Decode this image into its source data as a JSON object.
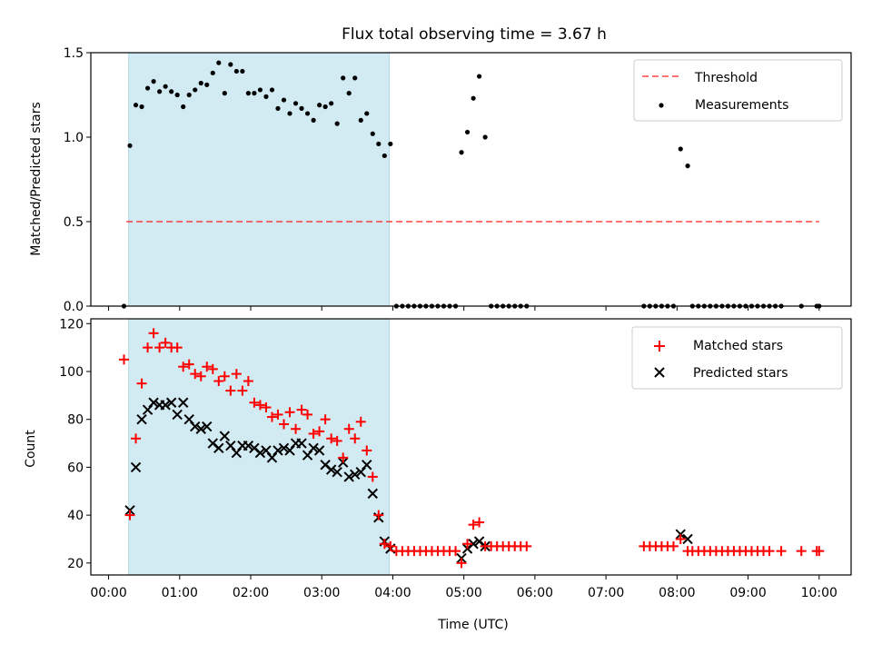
{
  "figure": {
    "title": "Flux total observing time = 3.67 h"
  },
  "chart_data": [
    {
      "type": "scatter",
      "title": "Flux total observing time = 3.67 h",
      "xlabel": "",
      "ylabel": "Matched/Predicted stars",
      "xlim": [
        "23:45",
        "10:27"
      ],
      "ylim": [
        0,
        1.5
      ],
      "yticks": [
        "0.0",
        "0.5",
        "1.0",
        "1.5"
      ],
      "shaded_region": {
        "start": "00:17",
        "end": "03:57",
        "color": "#add8e6"
      },
      "legend": {
        "position": "top-right",
        "entries": [
          "Threshold",
          "Measurements"
        ]
      },
      "threshold": {
        "name": "Threshold",
        "value": 0.5,
        "x_start": "00:15",
        "x_end": "10:00",
        "color": "#ff0000",
        "style": "dashed"
      },
      "measurements": {
        "name": "Measurements",
        "color": "#000000",
        "points": [
          [
            "00:13",
            0.0
          ],
          [
            "00:18",
            0.95
          ],
          [
            "00:23",
            1.19
          ],
          [
            "00:28",
            1.18
          ],
          [
            "00:33",
            1.29
          ],
          [
            "00:38",
            1.33
          ],
          [
            "00:43",
            1.27
          ],
          [
            "00:48",
            1.3
          ],
          [
            "00:53",
            1.27
          ],
          [
            "00:58",
            1.25
          ],
          [
            "01:03",
            1.18
          ],
          [
            "01:08",
            1.25
          ],
          [
            "01:13",
            1.28
          ],
          [
            "01:18",
            1.32
          ],
          [
            "01:23",
            1.31
          ],
          [
            "01:28",
            1.38
          ],
          [
            "01:33",
            1.44
          ],
          [
            "01:38",
            1.26
          ],
          [
            "01:43",
            1.43
          ],
          [
            "01:48",
            1.39
          ],
          [
            "01:53",
            1.39
          ],
          [
            "01:58",
            1.26
          ],
          [
            "02:03",
            1.26
          ],
          [
            "02:08",
            1.28
          ],
          [
            "02:13",
            1.24
          ],
          [
            "02:18",
            1.28
          ],
          [
            "02:23",
            1.17
          ],
          [
            "02:28",
            1.22
          ],
          [
            "02:33",
            1.14
          ],
          [
            "02:38",
            1.2
          ],
          [
            "02:43",
            1.17
          ],
          [
            "02:48",
            1.14
          ],
          [
            "02:53",
            1.1
          ],
          [
            "02:58",
            1.19
          ],
          [
            "03:03",
            1.18
          ],
          [
            "03:08",
            1.2
          ],
          [
            "03:13",
            1.08
          ],
          [
            "03:18",
            1.35
          ],
          [
            "03:23",
            1.26
          ],
          [
            "03:28",
            1.35
          ],
          [
            "03:33",
            1.1
          ],
          [
            "03:38",
            1.14
          ],
          [
            "03:43",
            1.02
          ],
          [
            "03:48",
            0.96
          ],
          [
            "03:53",
            0.89
          ],
          [
            "03:58",
            0.96
          ],
          [
            "04:03",
            0.0
          ],
          [
            "04:08",
            0.0
          ],
          [
            "04:13",
            0.0
          ],
          [
            "04:18",
            0.0
          ],
          [
            "04:23",
            0.0
          ],
          [
            "04:28",
            0.0
          ],
          [
            "04:33",
            0.0
          ],
          [
            "04:38",
            0.0
          ],
          [
            "04:43",
            0.0
          ],
          [
            "04:48",
            0.0
          ],
          [
            "04:53",
            0.0
          ],
          [
            "04:58",
            0.91
          ],
          [
            "05:03",
            1.03
          ],
          [
            "05:08",
            1.23
          ],
          [
            "05:13",
            1.36
          ],
          [
            "05:18",
            1.0
          ],
          [
            "05:23",
            0.0
          ],
          [
            "05:28",
            0.0
          ],
          [
            "05:33",
            0.0
          ],
          [
            "05:38",
            0.0
          ],
          [
            "05:43",
            0.0
          ],
          [
            "05:48",
            0.0
          ],
          [
            "05:53",
            0.0
          ],
          [
            "07:32",
            0.0
          ],
          [
            "07:37",
            0.0
          ],
          [
            "07:42",
            0.0
          ],
          [
            "07:47",
            0.0
          ],
          [
            "07:52",
            0.0
          ],
          [
            "07:57",
            0.0
          ],
          [
            "08:03",
            0.93
          ],
          [
            "08:09",
            0.83
          ],
          [
            "08:13",
            0.0
          ],
          [
            "08:18",
            0.0
          ],
          [
            "08:23",
            0.0
          ],
          [
            "08:28",
            0.0
          ],
          [
            "08:33",
            0.0
          ],
          [
            "08:38",
            0.0
          ],
          [
            "08:43",
            0.0
          ],
          [
            "08:48",
            0.0
          ],
          [
            "08:53",
            0.0
          ],
          [
            "08:58",
            0.0
          ],
          [
            "09:03",
            0.0
          ],
          [
            "09:08",
            0.0
          ],
          [
            "09:13",
            0.0
          ],
          [
            "09:18",
            0.0
          ],
          [
            "09:23",
            0.0
          ],
          [
            "09:28",
            0.0
          ],
          [
            "09:45",
            0.0
          ],
          [
            "09:58",
            0.0
          ],
          [
            "10:00",
            0.0
          ]
        ]
      }
    },
    {
      "type": "scatter",
      "title": "",
      "xlabel": "Time (UTC)",
      "ylabel": "Count",
      "xlim": [
        "23:45",
        "10:27"
      ],
      "ylim": [
        15,
        122
      ],
      "yticks": [
        "20",
        "40",
        "60",
        "80",
        "100",
        "120"
      ],
      "xticks": [
        "00:00",
        "01:00",
        "02:00",
        "03:00",
        "04:00",
        "05:00",
        "06:00",
        "07:00",
        "08:00",
        "09:00",
        "10:00"
      ],
      "shaded_region": {
        "start": "00:17",
        "end": "03:57",
        "color": "#add8e6"
      },
      "legend": {
        "position": "top-right",
        "entries": [
          "Matched stars",
          "Predicted stars"
        ]
      },
      "series": [
        {
          "name": "Matched stars",
          "marker": "+",
          "color": "#ff0000",
          "points": [
            [
              "00:13",
              105
            ],
            [
              "00:18",
              40
            ],
            [
              "00:23",
              72
            ],
            [
              "00:28",
              95
            ],
            [
              "00:33",
              110
            ],
            [
              "00:38",
              116
            ],
            [
              "00:43",
              110
            ],
            [
              "00:48",
              112
            ],
            [
              "00:53",
              110
            ],
            [
              "00:58",
              110
            ],
            [
              "01:03",
              102
            ],
            [
              "01:08",
              103
            ],
            [
              "01:13",
              99
            ],
            [
              "01:18",
              98
            ],
            [
              "01:23",
              102
            ],
            [
              "01:28",
              101
            ],
            [
              "01:33",
              96
            ],
            [
              "01:38",
              98
            ],
            [
              "01:43",
              92
            ],
            [
              "01:48",
              99
            ],
            [
              "01:53",
              92
            ],
            [
              "01:58",
              96
            ],
            [
              "02:03",
              87
            ],
            [
              "02:08",
              86
            ],
            [
              "02:13",
              85
            ],
            [
              "02:18",
              81
            ],
            [
              "02:23",
              82
            ],
            [
              "02:28",
              78
            ],
            [
              "02:33",
              83
            ],
            [
              "02:38",
              76
            ],
            [
              "02:43",
              84
            ],
            [
              "02:48",
              82
            ],
            [
              "02:53",
              74
            ],
            [
              "02:58",
              75
            ],
            [
              "03:03",
              80
            ],
            [
              "03:08",
              72
            ],
            [
              "03:13",
              71
            ],
            [
              "03:18",
              64
            ],
            [
              "03:23",
              76
            ],
            [
              "03:28",
              72
            ],
            [
              "03:33",
              79
            ],
            [
              "03:38",
              67
            ],
            [
              "03:43",
              56
            ],
            [
              "03:48",
              40
            ],
            [
              "03:53",
              28
            ],
            [
              "03:58",
              27
            ],
            [
              "04:03",
              25
            ],
            [
              "04:08",
              25
            ],
            [
              "04:13",
              25
            ],
            [
              "04:18",
              25
            ],
            [
              "04:23",
              25
            ],
            [
              "04:28",
              25
            ],
            [
              "04:33",
              25
            ],
            [
              "04:38",
              25
            ],
            [
              "04:43",
              25
            ],
            [
              "04:48",
              25
            ],
            [
              "04:53",
              25
            ],
            [
              "04:58",
              20
            ],
            [
              "05:03",
              28
            ],
            [
              "05:08",
              36
            ],
            [
              "05:13",
              37
            ],
            [
              "05:18",
              27
            ],
            [
              "05:23",
              27
            ],
            [
              "05:28",
              27
            ],
            [
              "05:33",
              27
            ],
            [
              "05:38",
              27
            ],
            [
              "05:43",
              27
            ],
            [
              "05:48",
              27
            ],
            [
              "05:53",
              27
            ],
            [
              "07:32",
              27
            ],
            [
              "07:37",
              27
            ],
            [
              "07:42",
              27
            ],
            [
              "07:47",
              27
            ],
            [
              "07:52",
              27
            ],
            [
              "07:57",
              27
            ],
            [
              "08:03",
              30
            ],
            [
              "08:09",
              25
            ],
            [
              "08:13",
              25
            ],
            [
              "08:18",
              25
            ],
            [
              "08:23",
              25
            ],
            [
              "08:28",
              25
            ],
            [
              "08:33",
              25
            ],
            [
              "08:38",
              25
            ],
            [
              "08:43",
              25
            ],
            [
              "08:48",
              25
            ],
            [
              "08:53",
              25
            ],
            [
              "08:58",
              25
            ],
            [
              "09:03",
              25
            ],
            [
              "09:08",
              25
            ],
            [
              "09:13",
              25
            ],
            [
              "09:18",
              25
            ],
            [
              "09:28",
              25
            ],
            [
              "09:45",
              25
            ],
            [
              "09:58",
              25
            ],
            [
              "10:00",
              25
            ]
          ]
        },
        {
          "name": "Predicted stars",
          "marker": "x",
          "color": "#000000",
          "points": [
            [
              "00:18",
              42
            ],
            [
              "00:23",
              60
            ],
            [
              "00:28",
              80
            ],
            [
              "00:33",
              84
            ],
            [
              "00:38",
              87
            ],
            [
              "00:43",
              86
            ],
            [
              "00:48",
              86
            ],
            [
              "00:53",
              87
            ],
            [
              "00:58",
              82
            ],
            [
              "01:03",
              87
            ],
            [
              "01:08",
              80
            ],
            [
              "01:13",
              77
            ],
            [
              "01:18",
              76
            ],
            [
              "01:23",
              77
            ],
            [
              "01:28",
              70
            ],
            [
              "01:33",
              68
            ],
            [
              "01:38",
              73
            ],
            [
              "01:43",
              69
            ],
            [
              "01:48",
              66
            ],
            [
              "01:53",
              69
            ],
            [
              "01:58",
              69
            ],
            [
              "02:03",
              68
            ],
            [
              "02:08",
              66
            ],
            [
              "02:13",
              67
            ],
            [
              "02:18",
              64
            ],
            [
              "02:23",
              67
            ],
            [
              "02:28",
              68
            ],
            [
              "02:33",
              67
            ],
            [
              "02:38",
              70
            ],
            [
              "02:43",
              70
            ],
            [
              "02:48",
              65
            ],
            [
              "02:53",
              68
            ],
            [
              "02:58",
              67
            ],
            [
              "03:03",
              61
            ],
            [
              "03:08",
              59
            ],
            [
              "03:13",
              58
            ],
            [
              "03:18",
              62
            ],
            [
              "03:23",
              56
            ],
            [
              "03:28",
              57
            ],
            [
              "03:33",
              58
            ],
            [
              "03:38",
              61
            ],
            [
              "03:43",
              49
            ],
            [
              "03:48",
              39
            ],
            [
              "03:53",
              29
            ],
            [
              "03:58",
              26
            ],
            [
              "04:58",
              22
            ],
            [
              "05:03",
              26
            ],
            [
              "05:08",
              28
            ],
            [
              "05:13",
              29
            ],
            [
              "05:18",
              27
            ],
            [
              "08:03",
              32
            ],
            [
              "08:09",
              30
            ]
          ]
        }
      ]
    }
  ]
}
